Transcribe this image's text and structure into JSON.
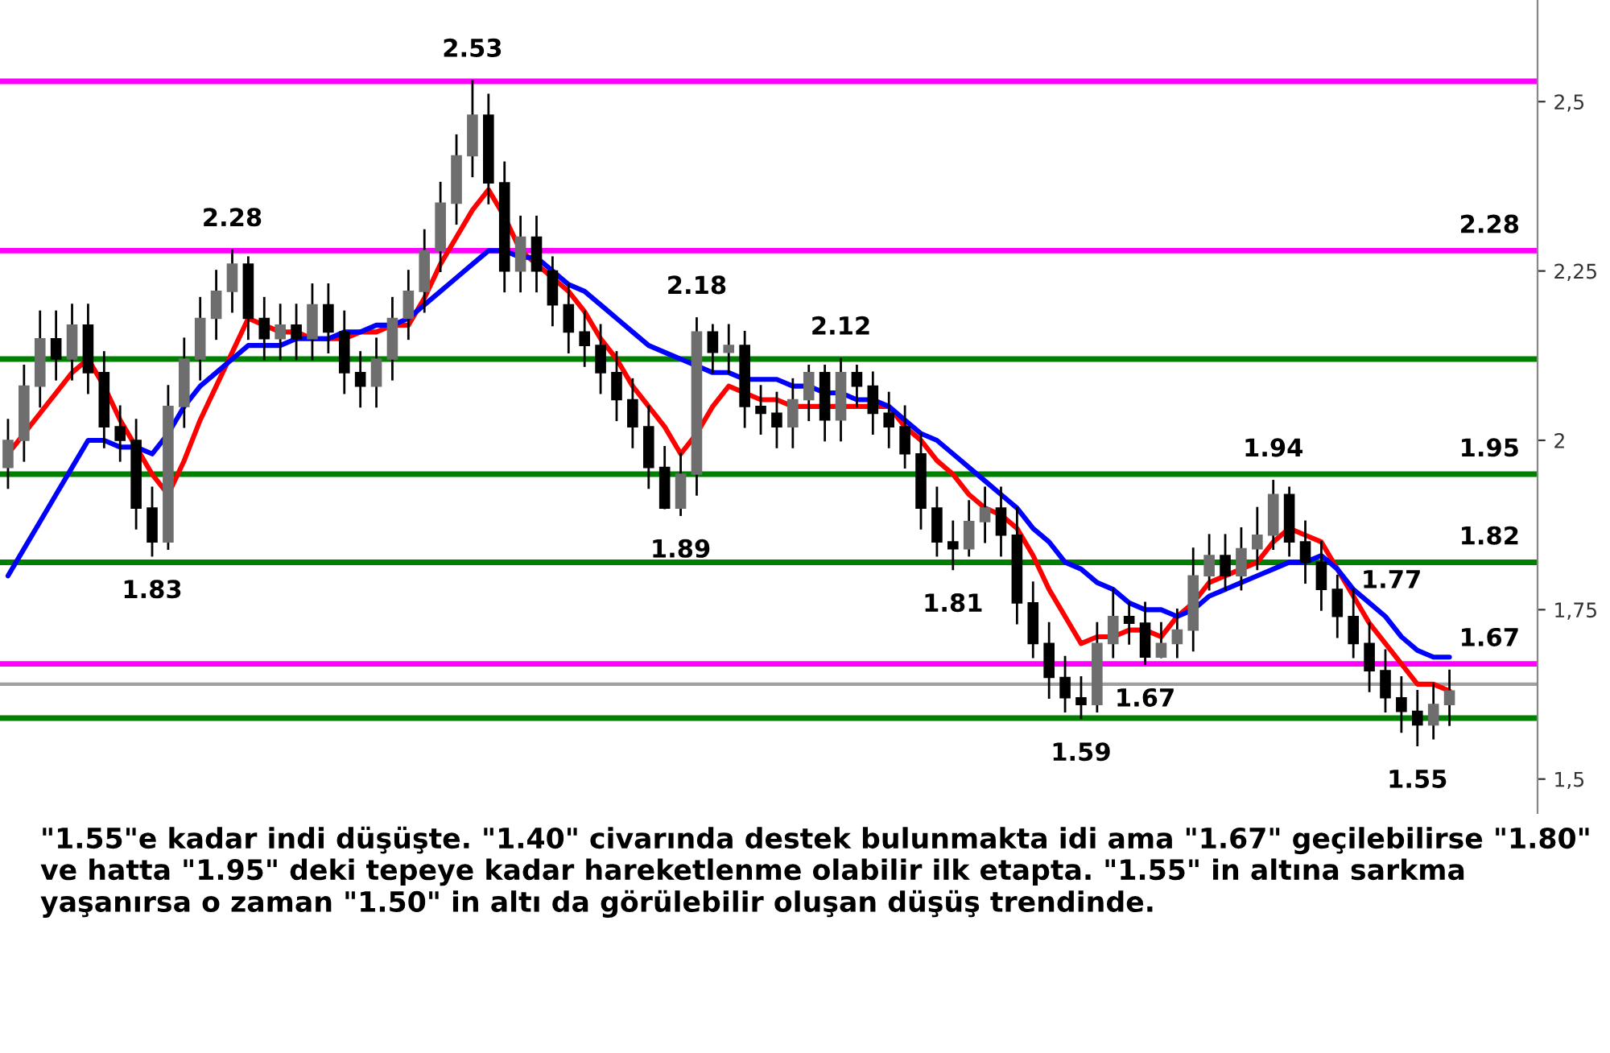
{
  "chart_data": {
    "type": "candlestick",
    "categories": [
      null,
      null,
      null,
      null,
      null,
      null,
      null,
      null,
      null,
      null,
      null,
      null,
      null,
      null,
      null,
      null,
      null,
      null,
      null,
      null,
      null,
      null,
      null,
      null,
      null,
      null,
      null,
      null,
      null,
      null,
      null,
      null,
      null,
      null,
      null,
      null,
      null,
      null,
      null,
      null,
      null,
      null,
      null,
      null,
      null,
      null,
      null,
      null,
      null,
      null,
      null,
      null,
      null,
      null,
      null,
      null,
      null,
      null,
      null,
      null,
      null,
      null,
      null,
      null,
      null,
      null,
      null,
      null,
      null,
      null,
      null,
      null,
      null,
      null,
      null,
      null,
      null,
      null,
      null,
      null,
      null,
      null,
      null,
      null,
      null,
      null,
      null,
      null,
      null,
      null,
      null
    ],
    "ohlc": [
      [
        1.96,
        2.03,
        1.93,
        2.0
      ],
      [
        2.0,
        2.11,
        1.97,
        2.08
      ],
      [
        2.08,
        2.19,
        2.05,
        2.15
      ],
      [
        2.15,
        2.19,
        2.09,
        2.12
      ],
      [
        2.12,
        2.2,
        2.09,
        2.17
      ],
      [
        2.17,
        2.2,
        2.07,
        2.1
      ],
      [
        2.1,
        2.13,
        1.99,
        2.02
      ],
      [
        2.02,
        2.05,
        1.97,
        2.0
      ],
      [
        2.0,
        2.03,
        1.87,
        1.9
      ],
      [
        1.9,
        1.93,
        1.83,
        1.85
      ],
      [
        1.85,
        2.08,
        1.84,
        2.05
      ],
      [
        2.05,
        2.15,
        2.02,
        2.12
      ],
      [
        2.12,
        2.21,
        2.09,
        2.18
      ],
      [
        2.18,
        2.25,
        2.15,
        2.22
      ],
      [
        2.22,
        2.28,
        2.19,
        2.26
      ],
      [
        2.26,
        2.27,
        2.15,
        2.18
      ],
      [
        2.18,
        2.21,
        2.12,
        2.15
      ],
      [
        2.15,
        2.2,
        2.12,
        2.17
      ],
      [
        2.17,
        2.2,
        2.12,
        2.15
      ],
      [
        2.15,
        2.23,
        2.12,
        2.2
      ],
      [
        2.2,
        2.23,
        2.13,
        2.16
      ],
      [
        2.16,
        2.19,
        2.07,
        2.1
      ],
      [
        2.1,
        2.13,
        2.05,
        2.08
      ],
      [
        2.08,
        2.15,
        2.05,
        2.12
      ],
      [
        2.12,
        2.21,
        2.09,
        2.18
      ],
      [
        2.18,
        2.25,
        2.15,
        2.22
      ],
      [
        2.22,
        2.31,
        2.19,
        2.28
      ],
      [
        2.28,
        2.38,
        2.25,
        2.35
      ],
      [
        2.35,
        2.45,
        2.32,
        2.42
      ],
      [
        2.42,
        2.53,
        2.39,
        2.48
      ],
      [
        2.48,
        2.51,
        2.35,
        2.38
      ],
      [
        2.38,
        2.41,
        2.22,
        2.25
      ],
      [
        2.25,
        2.33,
        2.22,
        2.3
      ],
      [
        2.3,
        2.33,
        2.22,
        2.25
      ],
      [
        2.25,
        2.27,
        2.17,
        2.2
      ],
      [
        2.2,
        2.23,
        2.13,
        2.16
      ],
      [
        2.16,
        2.19,
        2.11,
        2.14
      ],
      [
        2.14,
        2.17,
        2.07,
        2.1
      ],
      [
        2.1,
        2.13,
        2.03,
        2.06
      ],
      [
        2.06,
        2.09,
        1.99,
        2.02
      ],
      [
        2.02,
        2.05,
        1.93,
        1.96
      ],
      [
        1.96,
        1.99,
        1.9,
        1.9
      ],
      [
        1.9,
        1.98,
        1.89,
        1.95
      ],
      [
        1.95,
        2.18,
        1.92,
        2.16
      ],
      [
        2.16,
        2.17,
        2.1,
        2.13
      ],
      [
        2.13,
        2.17,
        2.1,
        2.14
      ],
      [
        2.14,
        2.16,
        2.02,
        2.05
      ],
      [
        2.05,
        2.08,
        2.01,
        2.04
      ],
      [
        2.04,
        2.07,
        1.99,
        2.02
      ],
      [
        2.02,
        2.09,
        1.99,
        2.06
      ],
      [
        2.06,
        2.11,
        2.03,
        2.1
      ],
      [
        2.1,
        2.11,
        2.0,
        2.03
      ],
      [
        2.03,
        2.12,
        2.0,
        2.1
      ],
      [
        2.1,
        2.11,
        2.05,
        2.08
      ],
      [
        2.08,
        2.1,
        2.01,
        2.04
      ],
      [
        2.04,
        2.07,
        1.99,
        2.02
      ],
      [
        2.02,
        2.05,
        1.96,
        1.98
      ],
      [
        1.98,
        2.01,
        1.87,
        1.9
      ],
      [
        1.9,
        1.93,
        1.83,
        1.85
      ],
      [
        1.85,
        1.88,
        1.81,
        1.84
      ],
      [
        1.84,
        1.91,
        1.83,
        1.88
      ],
      [
        1.88,
        1.93,
        1.85,
        1.9
      ],
      [
        1.9,
        1.93,
        1.83,
        1.86
      ],
      [
        1.86,
        1.9,
        1.73,
        1.76
      ],
      [
        1.76,
        1.79,
        1.68,
        1.7
      ],
      [
        1.7,
        1.73,
        1.62,
        1.65
      ],
      [
        1.65,
        1.68,
        1.6,
        1.62
      ],
      [
        1.62,
        1.65,
        1.59,
        1.61
      ],
      [
        1.61,
        1.73,
        1.6,
        1.7
      ],
      [
        1.7,
        1.78,
        1.68,
        1.74
      ],
      [
        1.74,
        1.76,
        1.7,
        1.73
      ],
      [
        1.73,
        1.76,
        1.67,
        1.68
      ],
      [
        1.68,
        1.73,
        1.68,
        1.7
      ],
      [
        1.7,
        1.75,
        1.68,
        1.72
      ],
      [
        1.72,
        1.84,
        1.69,
        1.8
      ],
      [
        1.8,
        1.86,
        1.78,
        1.83
      ],
      [
        1.83,
        1.86,
        1.78,
        1.8
      ],
      [
        1.8,
        1.87,
        1.78,
        1.84
      ],
      [
        1.84,
        1.9,
        1.81,
        1.86
      ],
      [
        1.86,
        1.94,
        1.84,
        1.92
      ],
      [
        1.92,
        1.93,
        1.83,
        1.85
      ],
      [
        1.85,
        1.88,
        1.79,
        1.82
      ],
      [
        1.82,
        1.85,
        1.75,
        1.78
      ],
      [
        1.78,
        1.8,
        1.71,
        1.74
      ],
      [
        1.74,
        1.78,
        1.68,
        1.7
      ],
      [
        1.7,
        1.73,
        1.63,
        1.66
      ],
      [
        1.66,
        1.69,
        1.6,
        1.62
      ],
      [
        1.62,
        1.65,
        1.57,
        1.6
      ],
      [
        1.6,
        1.63,
        1.55,
        1.58
      ],
      [
        1.58,
        1.64,
        1.56,
        1.61
      ],
      [
        1.61,
        1.66,
        1.58,
        1.63
      ]
    ],
    "series": [
      {
        "type": "line",
        "color": "#ff0000",
        "values": [
          1.98,
          2.01,
          2.04,
          2.07,
          2.1,
          2.12,
          2.08,
          2.03,
          1.99,
          1.95,
          1.92,
          1.97,
          2.03,
          2.08,
          2.13,
          2.18,
          2.17,
          2.16,
          2.16,
          2.15,
          2.15,
          2.15,
          2.16,
          2.16,
          2.17,
          2.17,
          2.21,
          2.26,
          2.3,
          2.34,
          2.37,
          2.33,
          2.28,
          2.26,
          2.24,
          2.22,
          2.19,
          2.15,
          2.12,
          2.08,
          2.05,
          2.02,
          1.98,
          2.01,
          2.05,
          2.08,
          2.07,
          2.06,
          2.06,
          2.05,
          2.05,
          2.05,
          2.05,
          2.05,
          2.05,
          2.05,
          2.02,
          2.0,
          1.97,
          1.95,
          1.92,
          1.9,
          1.89,
          1.87,
          1.83,
          1.78,
          1.74,
          1.7,
          1.71,
          1.71,
          1.72,
          1.72,
          1.71,
          1.74,
          1.76,
          1.79,
          1.8,
          1.81,
          1.82,
          1.85,
          1.87,
          1.86,
          1.85,
          1.81,
          1.77,
          1.73,
          1.7,
          1.67,
          1.64,
          1.64,
          1.63
        ]
      },
      {
        "type": "line",
        "color": "#0000ff",
        "values": [
          1.8,
          1.84,
          1.88,
          1.92,
          1.96,
          2.0,
          2.0,
          1.99,
          1.99,
          1.98,
          2.01,
          2.05,
          2.08,
          2.1,
          2.12,
          2.14,
          2.14,
          2.14,
          2.15,
          2.15,
          2.15,
          2.16,
          2.16,
          2.17,
          2.17,
          2.18,
          2.2,
          2.22,
          2.24,
          2.26,
          2.28,
          2.28,
          2.27,
          2.27,
          2.25,
          2.23,
          2.22,
          2.2,
          2.18,
          2.16,
          2.14,
          2.13,
          2.12,
          2.11,
          2.1,
          2.1,
          2.09,
          2.09,
          2.09,
          2.08,
          2.08,
          2.07,
          2.07,
          2.06,
          2.06,
          2.05,
          2.03,
          2.01,
          2.0,
          1.98,
          1.96,
          1.94,
          1.92,
          1.9,
          1.87,
          1.85,
          1.82,
          1.81,
          1.79,
          1.78,
          1.76,
          1.75,
          1.75,
          1.74,
          1.75,
          1.77,
          1.78,
          1.79,
          1.8,
          1.81,
          1.82,
          1.82,
          1.83,
          1.81,
          1.78,
          1.76,
          1.74,
          1.71,
          1.69,
          1.68,
          1.68
        ]
      }
    ],
    "ref_lines": [
      {
        "axis": "y",
        "value": 2.53,
        "color": "#ff00ff"
      },
      {
        "axis": "y",
        "value": 2.28,
        "color": "#ff00ff"
      },
      {
        "axis": "y",
        "value": 2.12,
        "color": "#008000"
      },
      {
        "axis": "y",
        "value": 1.95,
        "color": "#008000"
      },
      {
        "axis": "y",
        "value": 1.82,
        "color": "#008000"
      },
      {
        "axis": "y",
        "value": 1.67,
        "color": "#ff00ff"
      },
      {
        "axis": "y",
        "value": 1.64,
        "color": "#a0a0a0"
      },
      {
        "axis": "y",
        "value": 1.59,
        "color": "#008000"
      }
    ],
    "ylim": [
      1.45,
      2.65
    ],
    "yticks": [
      {
        "value": 1.5,
        "label": "1,5"
      },
      {
        "value": 1.75,
        "label": "1,75"
      },
      {
        "value": 2,
        "label": "2"
      },
      {
        "value": 2.25,
        "label": "2,25"
      },
      {
        "value": 2.5,
        "label": "2,5"
      }
    ],
    "tick_labels": "y",
    "grid": false,
    "annotations": [
      {
        "text": "2.53",
        "y": 2.53
      },
      {
        "text": "2.28",
        "y": 2.28
      },
      {
        "text": "2.28",
        "y": 2.28
      },
      {
        "text": "1.83",
        "y": 1.83
      },
      {
        "text": "1.89",
        "y": 1.89
      },
      {
        "text": "2.18",
        "y": 2.18
      },
      {
        "text": "2.12",
        "y": 2.12
      },
      {
        "text": "1.81",
        "y": 1.81
      },
      {
        "text": "1.95",
        "y": 1.95
      },
      {
        "text": "1.82",
        "y": 1.82
      },
      {
        "text": "1.94",
        "y": 1.94
      },
      "1.77",
      {
        "text": "1.67",
        "y": 1.67
      },
      {
        "text": "1.67",
        "y": 1.67
      },
      {
        "text": "1.59",
        "y": 1.59
      },
      {
        "text": "1.55",
        "y": 1.55
      },
      "\"1.55\"e kadar indi düşüşte. \"1.40\" civarında destek bulunmakta idi ama \"1.67\" geçilebilirse \"1.80\" ve hatta \"1.95\" deki tepeye kadar hareketlenme olabilir ilk etapta. \"1.55\" in altına sarkma yaşanırsa o zaman \"1.50\" in altı da görülebilir oluşan düşüş trendinde."
    ]
  }
}
